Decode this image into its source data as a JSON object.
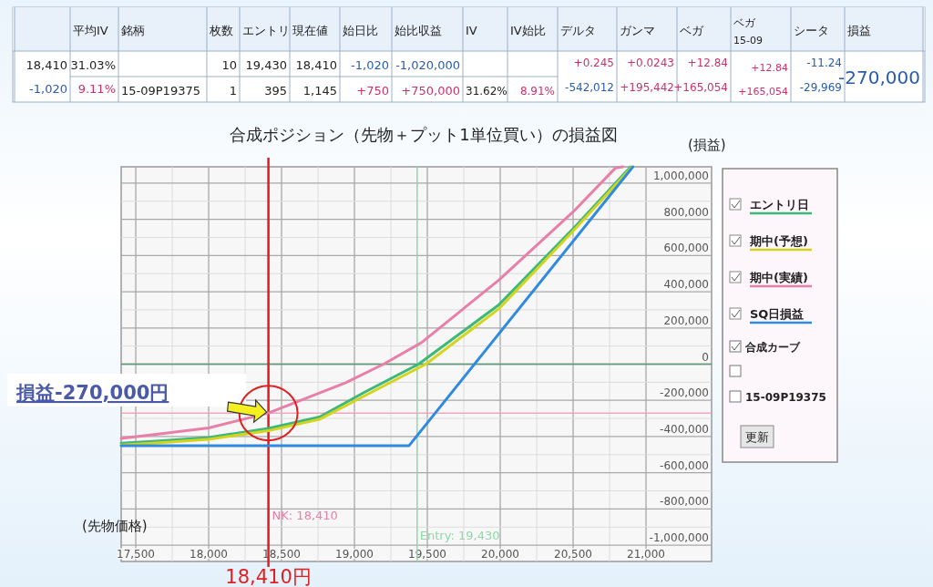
{
  "chart_data": [
    {
      "type": "other",
      "annotations": [
        "平均IV",
        "銘柄",
        "枚数",
        "エントリ",
        "現在値",
        "始日比",
        "始比収益",
        "IV",
        "IV始比",
        "デルタ",
        "ガンマ",
        "ベガ",
        "ベガ",
        "15-09",
        "シータ",
        "損益",
        "18,410",
        "31.03%",
        "10",
        "19,430",
        "18,410",
        "-1,020",
        "-1,020,000",
        "+0.245",
        "+0.0243",
        "+12.84",
        "+12.84",
        "-11.24",
        "-270,000",
        "-1,020",
        "9.11%",
        "15-09P19375",
        "1",
        "395",
        "1,145",
        "+750",
        "+750,000",
        "31.62%",
        "8.91%",
        "-542,012",
        "+195,442",
        "+165,054",
        "+165,054",
        "-29,969"
      ]
    },
    {
      "type": "line",
      "title": "合成ポジション（先物＋プット1単位買い）の損益図",
      "xlabel": "(先物価格)",
      "ylabel": "(損益)",
      "xlim": [
        17400,
        21450
      ],
      "ylim": [
        -1090000,
        1090000
      ],
      "xticks": [
        {
          "value": 17500,
          "label": "17,500"
        },
        {
          "value": 18000,
          "label": "18,000"
        },
        {
          "value": 18500,
          "label": "18,500"
        },
        {
          "value": 19000,
          "label": "19,000"
        },
        {
          "value": 19500,
          "label": "19,500"
        },
        {
          "value": 20000,
          "label": "20,000"
        },
        {
          "value": 20500,
          "label": "20,500"
        },
        {
          "value": 21000,
          "label": "21,000"
        }
      ],
      "yticks": [
        {
          "value": -1000000,
          "label": "-1,000,000"
        },
        {
          "value": -800000,
          "label": "-800,000"
        },
        {
          "value": -600000,
          "label": "-600,000"
        },
        {
          "value": -400000,
          "label": "-400,000"
        },
        {
          "value": -200000,
          "label": "-200,000"
        },
        0,
        {
          "value": 200000,
          "label": "200,000"
        },
        {
          "value": 400000,
          "label": "400,000"
        },
        {
          "value": 600000,
          "label": "600,000"
        },
        {
          "value": 800000,
          "label": "800,000"
        },
        {
          "value": 1000000,
          "label": "1,000,000"
        }
      ],
      "grid": true,
      "legend": "right",
      "series": [
        {
          "name": "エントリ日",
          "color": "#3cb878",
          "x": [
            17400,
            17640,
            18000,
            18410,
            18760,
            19070,
            19440,
            19990,
            20500,
            20895
          ],
          "values": [
            -437000,
            -425000,
            -405000,
            -355000,
            -292000,
            -155000,
            0,
            327000,
            748000,
            1090000
          ]
        },
        {
          "name": "期中(予想)",
          "color": "#d4d420",
          "x": [
            17400,
            17640,
            18000,
            18410,
            18760,
            19070,
            19490,
            19990,
            20500,
            20905
          ],
          "values": [
            -447000,
            -435000,
            -415000,
            -368000,
            -305000,
            -175000,
            0,
            305000,
            735000,
            1090000
          ]
        },
        {
          "name": "期中(実績)",
          "color": "#e87fa8",
          "x": [
            17400,
            17640,
            18000,
            18410,
            18940,
            19200,
            19460,
            19990,
            20500,
            20790,
            20840
          ],
          "values": [
            -410000,
            -388000,
            -352000,
            -270000,
            -103000,
            0,
            119000,
            464000,
            841000,
            1083000,
            1090000
          ]
        },
        {
          "name": "SQ日損益",
          "color": "#2f8ae0",
          "x": [
            17400,
            19375,
            20910
          ],
          "values": [
            -450000,
            -450000,
            1090000
          ]
        }
      ],
      "ref_lines": [
        {
          "axis": "y",
          "value": 0,
          "color": "#5a9a78"
        },
        {
          "axis": "y",
          "value": -270000,
          "color": "#f0a8c0"
        },
        {
          "axis": "x",
          "value": 19430,
          "label": "Entry: 19,430",
          "color": "#8fd8a8"
        },
        {
          "axis": "x",
          "value": 18410,
          "label": "NK: 18,410",
          "color": "#e87fa8"
        },
        {
          "axis": "x",
          "value": 18410,
          "label": "18,410円",
          "color": "#e02020"
        }
      ],
      "annotations": [
        "損益-270,000円",
        "合成カーブ",
        "15-09P19375",
        "更新"
      ]
    }
  ]
}
